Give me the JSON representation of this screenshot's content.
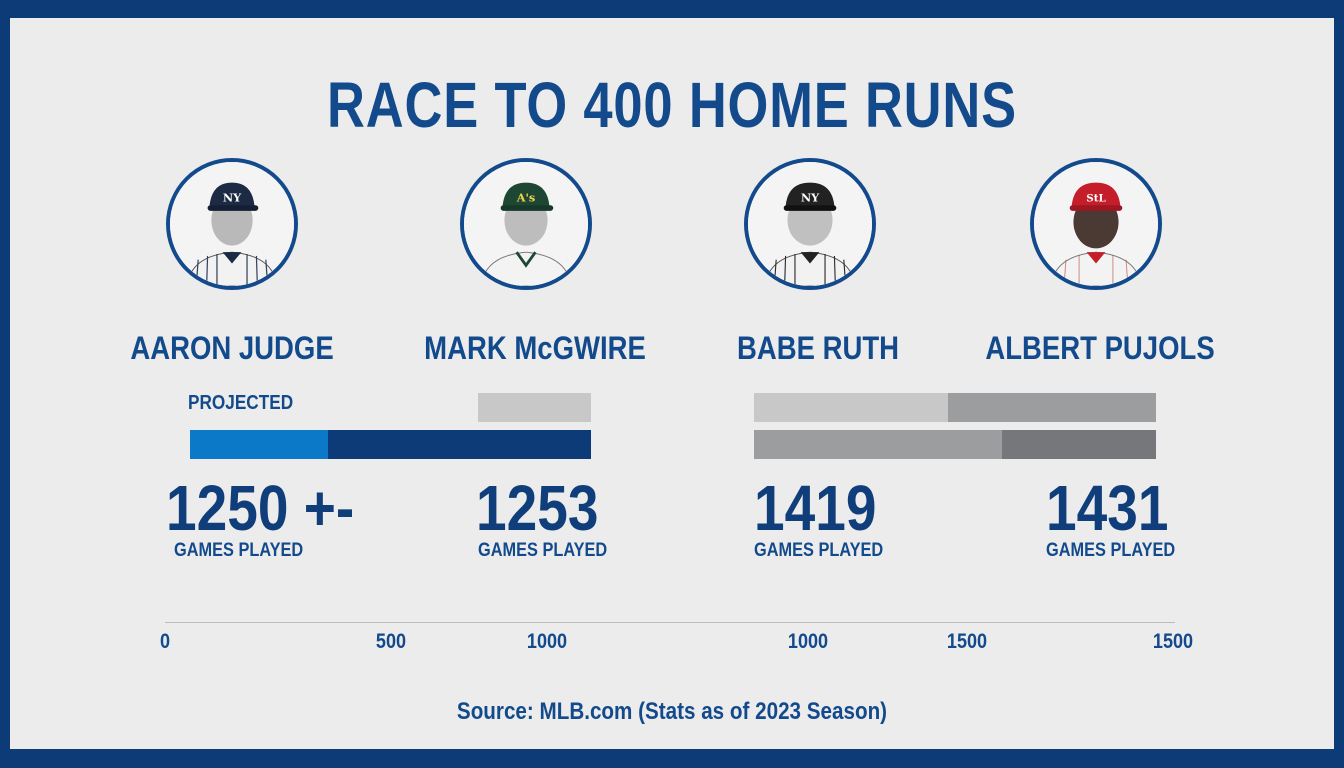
{
  "title": "RACE TO 400 HOME RUNS",
  "projected_label": "PROJECTED",
  "source": "Source: MLB.com (Stats as of 2023 Season)",
  "colors": {
    "frame": "#0d3b78",
    "background": "#ececed",
    "text": "#134a8c",
    "projected": "#0b78c8",
    "judge_bar": "#0d3b78",
    "light_gray": "#c8c8c9",
    "mid_gray": "#9c9d9f",
    "dark_gray": "#76777a"
  },
  "players": [
    {
      "name": "AARON JUDGE",
      "team_logo": "NY",
      "cap_color": "#1c2a44",
      "jersey": "pinstripe-navy",
      "games": "1250 +-",
      "games_label": "GAMES PLAYED"
    },
    {
      "name": "MARK McGWIRE",
      "team_logo": "A's",
      "cap_color": "#1d4733",
      "jersey": "white-green",
      "games": "1253",
      "games_label": "GAMES PLAYED"
    },
    {
      "name": "BABE RUTH",
      "team_logo": "NY",
      "cap_color": "#1c2a44",
      "jersey": "pinstripe-navy",
      "games": "1419",
      "games_label": "GAMES PLAYED"
    },
    {
      "name": "ALBERT PUJOLS",
      "team_logo": "StL",
      "cap_color": "#c41e2b",
      "jersey": "white-red",
      "games": "1431",
      "games_label": "GAMES PLAYED"
    }
  ],
  "chart_data": {
    "type": "bar",
    "title": "RACE TO 400 HOME RUNS",
    "unit": "GAMES PLAYED",
    "categories": [
      "AARON JUDGE",
      "MARK McGWIRE",
      "BABE RUTH",
      "ALBERT PUJOLS"
    ],
    "values": [
      1250,
      1253,
      1419,
      1431
    ],
    "value_labels": [
      "1250 +-",
      "1253",
      "1419",
      "1431"
    ],
    "annotations": [
      "PROJECTED"
    ],
    "x_ticks": [
      "0",
      "500",
      "1000",
      "1000",
      "1500",
      "1500"
    ],
    "legend": "none",
    "grid": false
  }
}
